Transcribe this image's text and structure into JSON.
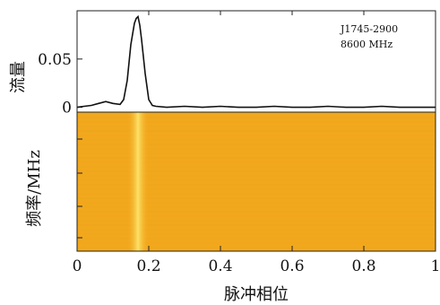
{
  "chart_data": [
    {
      "type": "line",
      "panel": "profile",
      "ylabel": "流量",
      "ylim": [
        -0.005,
        0.1
      ],
      "yticks": [
        0,
        0.05
      ],
      "ytick_labels": [
        "0",
        "0.05"
      ],
      "xlim": [
        0,
        1
      ],
      "annotations": [
        "J1745-2900",
        "8600 MHz"
      ],
      "series": [
        {
          "x": [
            0.0,
            0.02,
            0.04,
            0.06,
            0.08,
            0.1,
            0.12,
            0.13,
            0.14,
            0.15,
            0.16,
            0.165,
            0.17,
            0.175,
            0.18,
            0.19,
            0.2,
            0.21,
            0.22,
            0.25,
            0.3,
            0.35,
            0.4,
            0.45,
            0.5,
            0.55,
            0.6,
            0.65,
            0.7,
            0.75,
            0.8,
            0.85,
            0.9,
            0.95,
            1.0
          ],
          "y": [
            0.0,
            0.001,
            0.002,
            0.004,
            0.006,
            0.004,
            0.003,
            0.008,
            0.028,
            0.065,
            0.087,
            0.092,
            0.094,
            0.085,
            0.07,
            0.035,
            0.008,
            0.002,
            0.001,
            0.0,
            0.001,
            0.0,
            0.001,
            0.0,
            0.0,
            0.001,
            0.0,
            0.0,
            0.001,
            0.0,
            0.0,
            0.001,
            0.0,
            0.0,
            0.0
          ]
        }
      ]
    },
    {
      "type": "heatmap",
      "panel": "waterfall",
      "xlabel": "脉冲相位",
      "ylabel": "频率/MHz",
      "xlim": [
        0,
        1
      ],
      "xticks": [
        0,
        0.2,
        0.4,
        0.6,
        0.8,
        1
      ],
      "xtick_labels": [
        "0",
        "0.2",
        "0.4",
        "0.6",
        "0.8",
        "1"
      ],
      "pulse_center": 0.17,
      "pulse_width": 0.03,
      "colors": {
        "background": "#f2a81d",
        "pulse": "#fde268"
      }
    }
  ]
}
